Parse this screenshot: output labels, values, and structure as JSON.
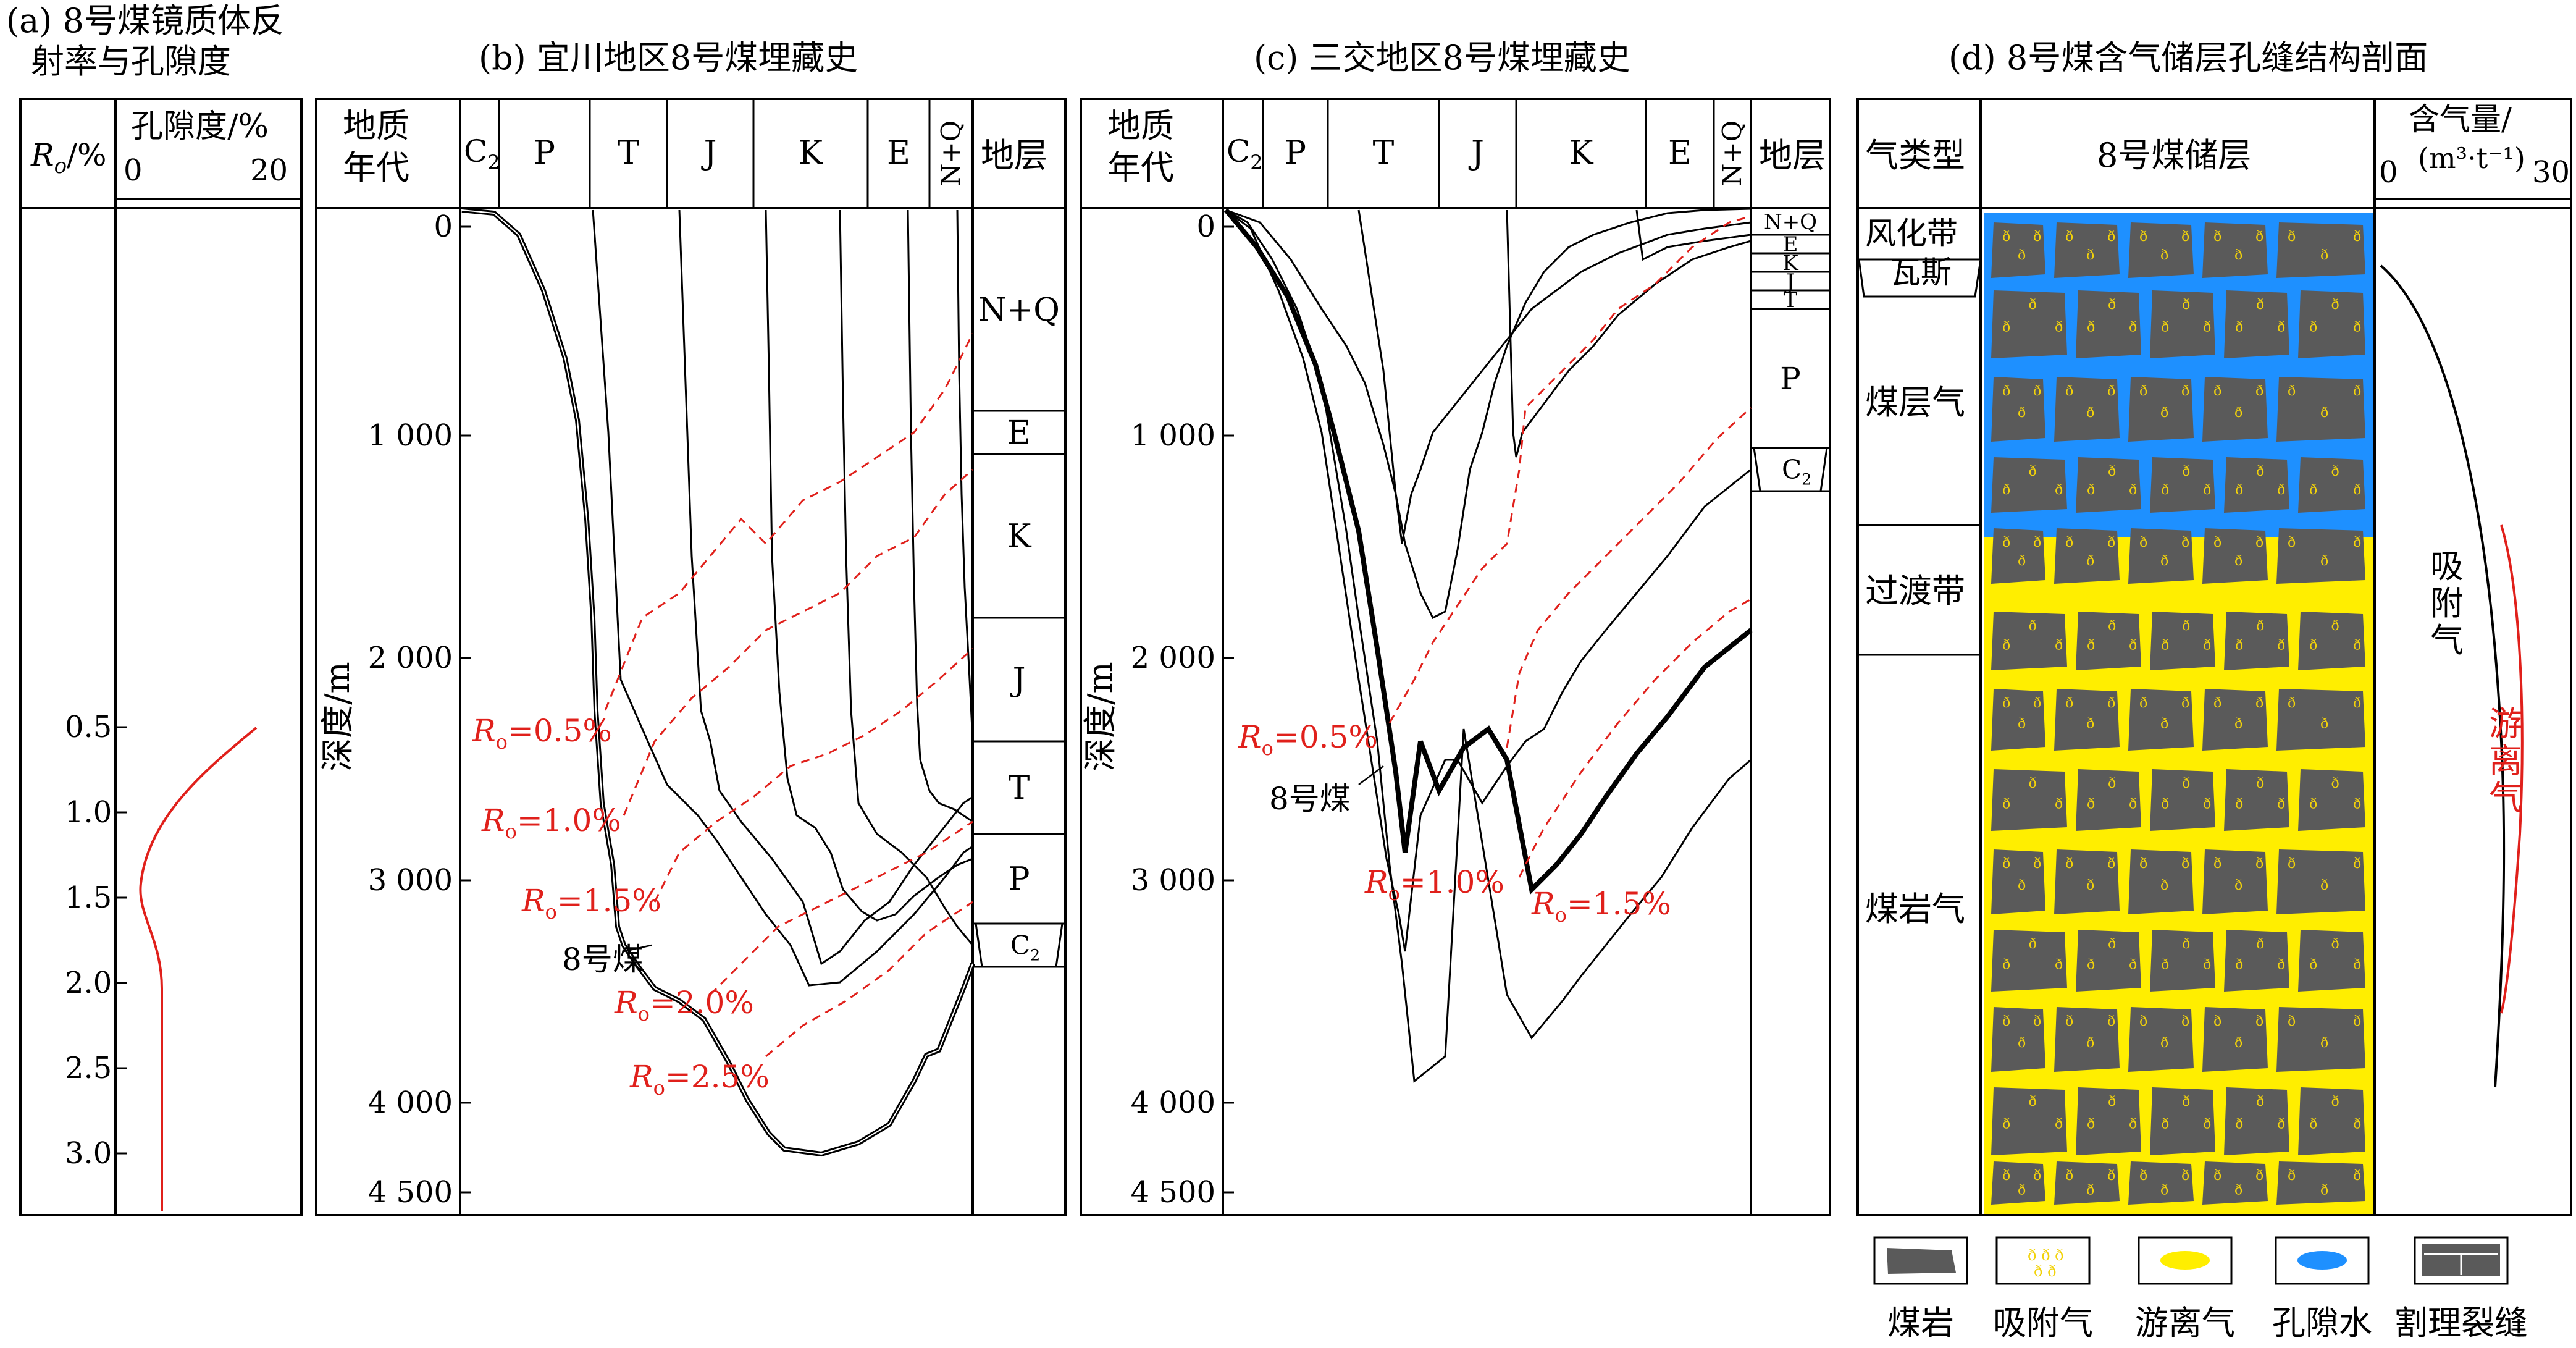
{
  "panel_a": {
    "title_line1": "(a) 8号煤镜质体反",
    "title_line2": "射率与孔隙度",
    "ro_header_main": "R",
    "ro_header_sub": "o",
    "ro_header_unit": "/%",
    "porosity_header": "孔隙度/%",
    "porosity_scale": [
      "0",
      "20"
    ],
    "ro_ticks": [
      "0.5",
      "1.0",
      "1.5",
      "2.0",
      "2.5",
      "3.0"
    ]
  },
  "panel_b": {
    "title": "(b) 宜川地区8号煤埋藏史",
    "age_header_line1": "地质",
    "age_header_line2": "年代",
    "ages": [
      "C",
      "P",
      "T",
      "J",
      "K",
      "E",
      "N+Q"
    ],
    "strata_header": "地层",
    "strata": [
      "N+Q",
      "E",
      "K",
      "J",
      "T",
      "P",
      "C"
    ],
    "depth_label": "深度/m",
    "depth_ticks": [
      "0",
      "1 000",
      "2 000",
      "3 000",
      "4 000",
      "4 500"
    ],
    "coal_label": "8号煤",
    "ro_labels": [
      "=0.5%",
      "=1.0%",
      "=1.5%",
      "=2.0%",
      "=2.5%"
    ]
  },
  "panel_c": {
    "title": "(c) 三交地区8号煤埋藏史",
    "age_header_line1": "地质",
    "age_header_line2": "年代",
    "ages": [
      "C",
      "P",
      "T",
      "J",
      "K",
      "E",
      "N+Q"
    ],
    "strata_header": "地层",
    "strata": [
      "N+Q",
      "E",
      "K",
      "J",
      "T",
      "P",
      "C"
    ],
    "depth_label": "深度/m",
    "depth_ticks": [
      "0",
      "1 000",
      "2 000",
      "3 000",
      "4 000",
      "4 500"
    ],
    "coal_label": "8号煤",
    "ro_labels": [
      "=0.5%",
      "=1.0%",
      "=1.5%"
    ]
  },
  "panel_d": {
    "title": "(d) 8号煤含气储层孔缝结构剖面",
    "gas_type_header": "气类型",
    "reservoir_header": "8号煤储层",
    "gas_content_header_line1": "含气量/",
    "gas_content_header_line2": "(m³·t⁻¹)",
    "gas_content_scale": [
      "0",
      "30"
    ],
    "zones": [
      "风化带",
      "瓦斯",
      "煤层气",
      "过渡带",
      "煤岩气"
    ],
    "adsorbed_label": [
      "吸",
      "附",
      "气"
    ],
    "free_label": [
      "游",
      "离",
      "气"
    ]
  },
  "legend": [
    {
      "label": "煤岩",
      "icon": "coal-rock-icon"
    },
    {
      "label": "吸附气",
      "icon": "adsorbed-gas-icon"
    },
    {
      "label": "游离气",
      "icon": "free-gas-icon"
    },
    {
      "label": "孔隙水",
      "icon": "pore-water-icon"
    },
    {
      "label": "割理裂缝",
      "icon": "cleat-fracture-icon"
    }
  ],
  "colors": {
    "line": "#000000",
    "ro_red": "#e0201b",
    "coal_gray": "#5a5a5a",
    "free_gas_yellow": "#ffee00",
    "pore_water_blue": "#1e90ff",
    "adsorbed_dot": "#f2d20a"
  }
}
